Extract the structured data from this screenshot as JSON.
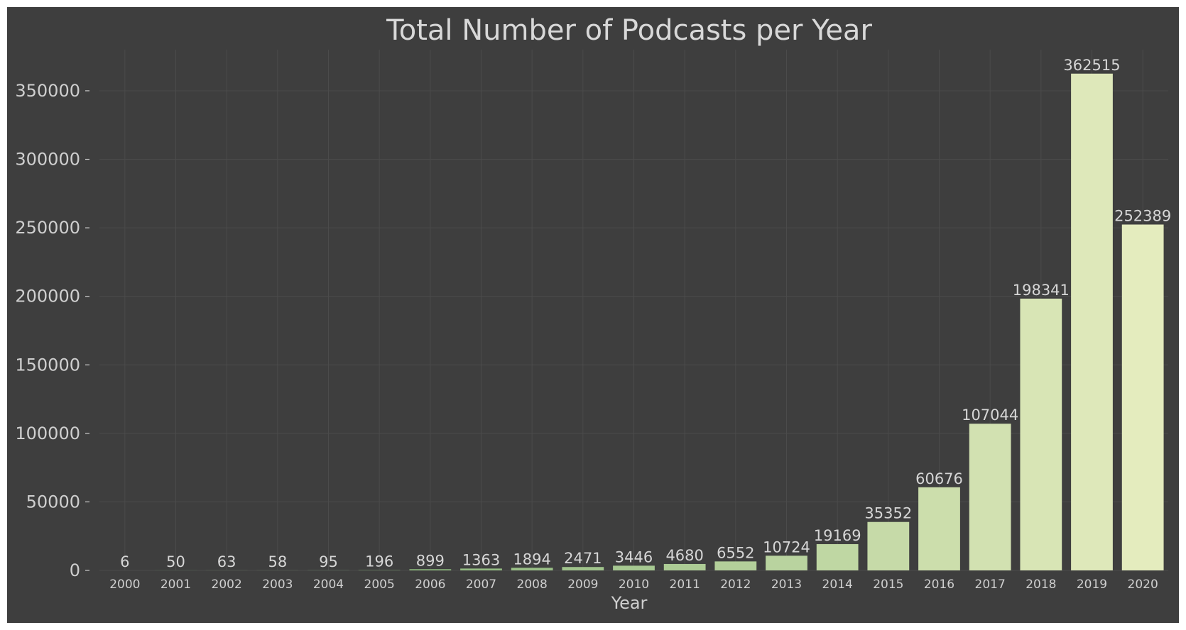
{
  "chart_data": {
    "type": "bar",
    "title": "Total Number of Podcasts per Year",
    "xlabel": "Year",
    "ylabel": "",
    "categories": [
      "2000",
      "2001",
      "2002",
      "2003",
      "2004",
      "2005",
      "2006",
      "2007",
      "2008",
      "2009",
      "2010",
      "2011",
      "2012",
      "2013",
      "2014",
      "2015",
      "2016",
      "2017",
      "2018",
      "2019",
      "2020"
    ],
    "values": [
      6,
      50,
      63,
      58,
      95,
      196,
      899,
      1363,
      1894,
      2471,
      3446,
      4680,
      6552,
      10724,
      19169,
      35352,
      60676,
      107044,
      198341,
      362515,
      252389
    ],
    "data_labels": [
      "6",
      "50",
      "63",
      "58",
      "95",
      "196",
      "899",
      "1363",
      "1894",
      "2471",
      "3446",
      "4680",
      "6552",
      "10724",
      "19169",
      "35352",
      "60676",
      "107044",
      "198341",
      "362515",
      "252389"
    ],
    "yticks": [
      0,
      50000,
      100000,
      150000,
      200000,
      250000,
      300000,
      350000
    ],
    "ytick_labels": [
      "0",
      "50000",
      "100000",
      "150000",
      "200000",
      "250000",
      "300000",
      "350000"
    ],
    "ylim": [
      0,
      380000
    ],
    "grid": true,
    "legend": "none",
    "colors": {
      "background": "#3e3e3e",
      "grid": "#4b4b4b",
      "text": "#cfcfcf",
      "bar_low": "#5f9e5c",
      "bar_high": "#e4ecbe"
    }
  }
}
